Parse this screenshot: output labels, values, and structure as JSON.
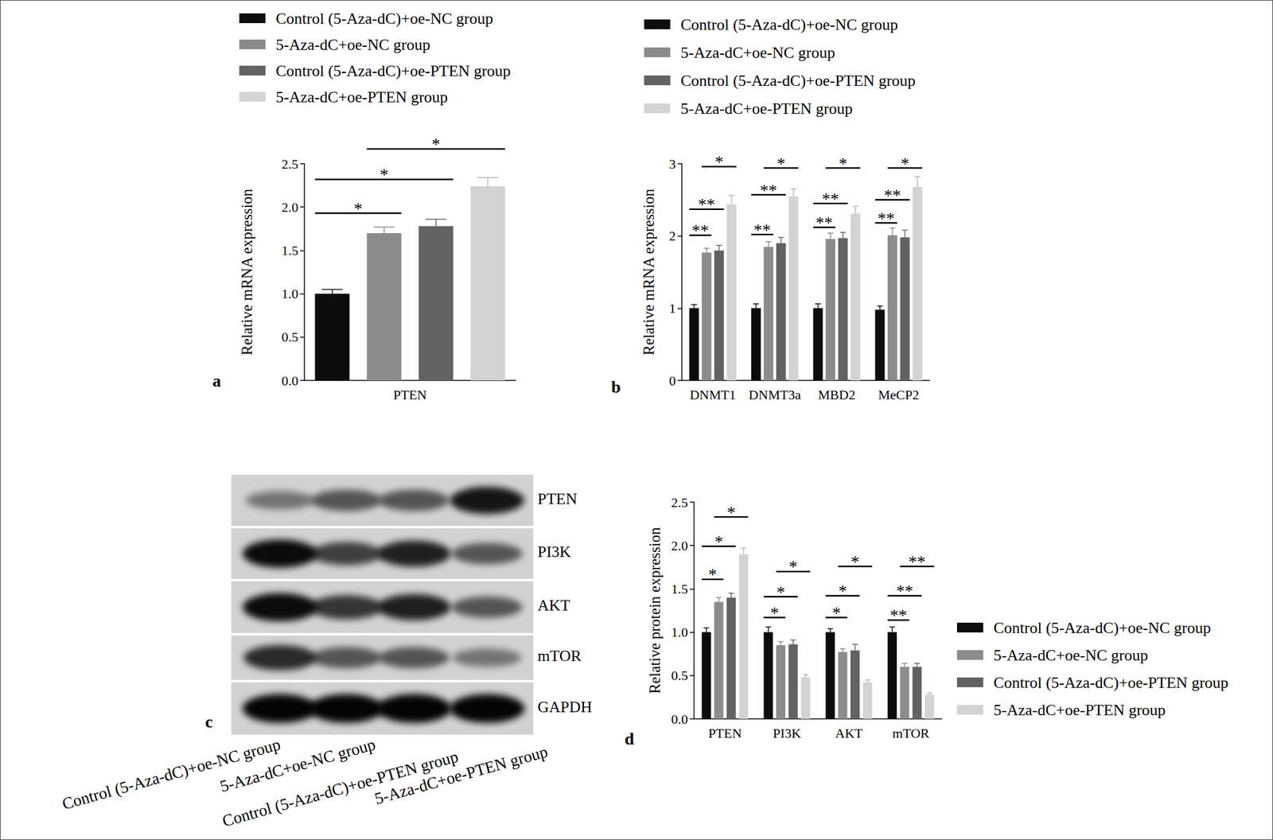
{
  "chart_data": [
    {
      "panel": "a",
      "type": "bar",
      "categories": [
        "PTEN"
      ],
      "ylabel": "Relative mRNA expression",
      "ylim": [
        0,
        2.5
      ],
      "yticks": [
        {
          "value": 0,
          "label": "0.0"
        },
        0.5,
        {
          "value": 1,
          "label": "1.0"
        },
        1.5,
        {
          "value": 2,
          "label": "2.0"
        },
        2.5
      ],
      "grid": false,
      "legend": "top",
      "series": [
        {
          "name": "Control (5-Aza-dC)+oe-NC group",
          "color": "#0d0d0d",
          "values": [
            1.0
          ],
          "errors": [
            0.05
          ]
        },
        {
          "name": "5-Aza-dC+oe-NC group",
          "color": "#8c8c8c",
          "values": [
            1.7
          ],
          "errors": [
            0.07
          ]
        },
        {
          "name": "Control (5-Aza-dC)+oe-PTEN group",
          "color": "#626262",
          "values": [
            1.78
          ],
          "errors": [
            0.08
          ]
        },
        {
          "name": "5-Aza-dC+oe-PTEN group",
          "color": "#d3d3d3",
          "values": [
            2.24
          ],
          "errors": [
            0.1
          ]
        }
      ],
      "annotations": [
        {
          "text": "*",
          "category": 0,
          "from": 0,
          "to": 1,
          "y": 1.93
        },
        {
          "text": "*",
          "category": 0,
          "from": 0,
          "to": 2,
          "y": 2.32
        },
        {
          "text": "*",
          "category": 0,
          "from": 1,
          "to": 3,
          "y": 2.67
        }
      ]
    },
    {
      "panel": "b",
      "type": "bar",
      "categories": [
        "DNMT1",
        "DNMT3a",
        "MBD2",
        "MeCP2"
      ],
      "ylabel": "Relative mRNA expression",
      "ylim": [
        0,
        3
      ],
      "yticks": [
        0,
        1,
        2,
        3
      ],
      "grid": false,
      "legend": "top",
      "series": [
        {
          "name": "Control (5-Aza-dC)+oe-NC group",
          "color": "#0d0d0d",
          "values": [
            1.0,
            1.0,
            1.0,
            0.98
          ],
          "errors": [
            0.05,
            0.06,
            0.06,
            0.05
          ]
        },
        {
          "name": "5-Aza-dC+oe-NC group",
          "color": "#8c8c8c",
          "values": [
            1.77,
            1.85,
            1.96,
            2.01
          ],
          "errors": [
            0.06,
            0.07,
            0.08,
            0.1
          ]
        },
        {
          "name": "Control (5-Aza-dC)+oe-PTEN group",
          "color": "#626262",
          "values": [
            1.8,
            1.9,
            1.97,
            1.98
          ],
          "errors": [
            0.07,
            0.08,
            0.08,
            0.1
          ]
        },
        {
          "name": "5-Aza-dC+oe-PTEN group",
          "color": "#d3d3d3",
          "values": [
            2.44,
            2.55,
            2.31,
            2.68
          ],
          "errors": [
            0.12,
            0.1,
            0.1,
            0.14
          ]
        }
      ],
      "annotations": [
        {
          "text": "**",
          "category": 0,
          "from": 0,
          "to": 1,
          "y": 2.01
        },
        {
          "text": "**",
          "category": 0,
          "from": 0,
          "to": 2,
          "y": 2.37
        },
        {
          "text": "*",
          "category": 0,
          "from": 1,
          "to": 3,
          "y": 2.96
        },
        {
          "text": "**",
          "category": 1,
          "from": 0,
          "to": 1,
          "y": 2.02
        },
        {
          "text": "**",
          "category": 1,
          "from": 0,
          "to": 2,
          "y": 2.57
        },
        {
          "text": "*",
          "category": 1,
          "from": 1,
          "to": 3,
          "y": 2.94
        },
        {
          "text": "**",
          "category": 2,
          "from": 0,
          "to": 1,
          "y": 2.12
        },
        {
          "text": "**",
          "category": 2,
          "from": 0,
          "to": 2,
          "y": 2.45
        },
        {
          "text": "*",
          "category": 2,
          "from": 1,
          "to": 3,
          "y": 2.94
        },
        {
          "text": "**",
          "category": 3,
          "from": 0,
          "to": 1,
          "y": 2.18
        },
        {
          "text": "**",
          "category": 3,
          "from": 0,
          "to": 2,
          "y": 2.5
        },
        {
          "text": "*",
          "category": 3,
          "from": 1,
          "to": 3,
          "y": 2.94
        }
      ]
    },
    {
      "panel": "d",
      "type": "bar",
      "categories": [
        "PTEN",
        "PI3K",
        "AKT",
        "mTOR"
      ],
      "ylabel": "Relative protein expression",
      "ylim": [
        0,
        2.5
      ],
      "yticks": [
        {
          "value": 0,
          "label": "0.0"
        },
        0.5,
        {
          "value": 1,
          "label": "1.0"
        },
        1.5,
        {
          "value": 2,
          "label": "2.0"
        },
        2.5
      ],
      "grid": false,
      "legend": "right",
      "series": [
        {
          "name": "Control (5-Aza-dC)+oe-NC group",
          "color": "#0d0d0d",
          "values": [
            1.0,
            1.0,
            1.0,
            1.0
          ],
          "errors": [
            0.05,
            0.06,
            0.04,
            0.06
          ]
        },
        {
          "name": "5-Aza-dC+oe-NC group",
          "color": "#8c8c8c",
          "values": [
            1.35,
            0.85,
            0.77,
            0.6
          ],
          "errors": [
            0.05,
            0.04,
            0.04,
            0.04
          ]
        },
        {
          "name": "Control (5-Aza-dC)+oe-PTEN group",
          "color": "#626262",
          "values": [
            1.4,
            0.86,
            0.79,
            0.6
          ],
          "errors": [
            0.05,
            0.05,
            0.07,
            0.04
          ]
        },
        {
          "name": "5-Aza-dC+oe-PTEN group",
          "color": "#d3d3d3",
          "values": [
            1.9,
            0.48,
            0.42,
            0.28
          ],
          "errors": [
            0.07,
            0.03,
            0.03,
            0.02
          ]
        }
      ],
      "annotations": [
        {
          "text": "*",
          "category": 0,
          "from": 0,
          "to": 1,
          "y": 1.61
        },
        {
          "text": "*",
          "category": 0,
          "from": 0,
          "to": 2,
          "y": 1.99
        },
        {
          "text": "*",
          "category": 0,
          "from": 1,
          "to": 3,
          "y": 2.33
        },
        {
          "text": "*",
          "category": 1,
          "from": 0,
          "to": 1,
          "y": 1.17
        },
        {
          "text": "*",
          "category": 1,
          "from": 0,
          "to": 2,
          "y": 1.41
        },
        {
          "text": "*",
          "category": 1,
          "from": 1,
          "to": 3,
          "y": 1.7
        },
        {
          "text": "*",
          "category": 2,
          "from": 0,
          "to": 1,
          "y": 1.17
        },
        {
          "text": "*",
          "category": 2,
          "from": 0,
          "to": 2,
          "y": 1.42
        },
        {
          "text": "*",
          "category": 2,
          "from": 1,
          "to": 3,
          "y": 1.76
        },
        {
          "text": "**",
          "category": 3,
          "from": 0,
          "to": 1,
          "y": 1.14
        },
        {
          "text": "**",
          "category": 3,
          "from": 0,
          "to": 2,
          "y": 1.42
        },
        {
          "text": "**",
          "category": 3,
          "from": 1,
          "to": 3,
          "y": 1.76
        }
      ]
    }
  ],
  "blot": {
    "panel": "c",
    "proteins": [
      "PTEN",
      "PI3K",
      "AKT",
      "mTOR",
      "GAPDH"
    ],
    "lanes": [
      "Control (5-Aza-dC)+oe-NC group",
      "5-Aza-dC+oe-NC group",
      "Control (5-Aza-dC)+oe-PTEN group",
      "5-Aza-dC+oe-PTEN group"
    ],
    "band_intensity": [
      [
        0.45,
        0.6,
        0.6,
        0.9
      ],
      [
        0.95,
        0.7,
        0.85,
        0.6
      ],
      [
        0.95,
        0.75,
        0.85,
        0.6
      ],
      [
        0.8,
        0.6,
        0.6,
        0.45
      ],
      [
        0.98,
        0.98,
        0.98,
        0.98
      ]
    ]
  }
}
